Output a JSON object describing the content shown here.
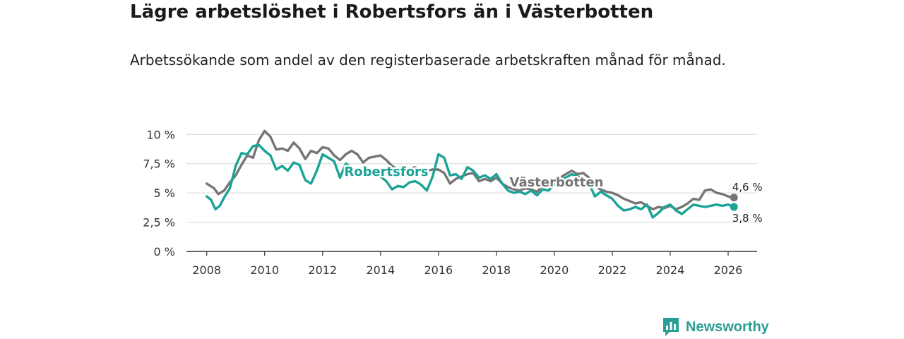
{
  "header": {
    "title": "Lägre arbetslöshet i Robertsfors än i Västerbotten",
    "subtitle": "Arbetssökande som andel av den registerbaserade arbetskraften månad för månad."
  },
  "brand": {
    "name": "Newsworthy",
    "icon": "bar-chart-speech-icon"
  },
  "colors": {
    "robertsfors": "#1aa396",
    "vasterbotten": "#757575",
    "grid": "#d9d9d9",
    "axis": "#333333"
  },
  "chart_data": {
    "type": "line",
    "title": "Lägre arbetslöshet i Robertsfors än i Västerbotten",
    "subtitle": "Arbetssökande som andel av den registerbaserade arbetskraften månad för månad.",
    "xlabel": "",
    "ylabel": "",
    "xlim": [
      2007.3,
      2027.0
    ],
    "ylim": [
      0,
      10.5
    ],
    "grid": true,
    "x_ticks": [
      2008,
      2010,
      2012,
      2014,
      2016,
      2018,
      2020,
      2022,
      2024,
      2026
    ],
    "x_tick_labels": [
      "2008",
      "2010",
      "2012",
      "2014",
      "2016",
      "2018",
      "2020",
      "2022",
      "2024",
      "2026"
    ],
    "y_ticks": [
      0,
      2.5,
      5,
      7.5,
      10
    ],
    "y_tick_labels": [
      "0 %",
      "2,5 %",
      "5 %",
      "7,5 %",
      "10 %"
    ],
    "series": [
      {
        "name": "Västerbotten",
        "label": "Västerbotten",
        "end_label": "4,6 %",
        "points": [
          [
            2008.0,
            5.8
          ],
          [
            2008.25,
            5.4
          ],
          [
            2008.4,
            4.9
          ],
          [
            2008.6,
            5.2
          ],
          [
            2008.8,
            5.9
          ],
          [
            2009.0,
            6.5
          ],
          [
            2009.2,
            7.4
          ],
          [
            2009.4,
            8.2
          ],
          [
            2009.6,
            8.0
          ],
          [
            2009.8,
            9.5
          ],
          [
            2010.0,
            10.3
          ],
          [
            2010.2,
            9.8
          ],
          [
            2010.4,
            8.7
          ],
          [
            2010.6,
            8.8
          ],
          [
            2010.8,
            8.6
          ],
          [
            2011.0,
            9.3
          ],
          [
            2011.2,
            8.8
          ],
          [
            2011.4,
            7.9
          ],
          [
            2011.6,
            8.6
          ],
          [
            2011.8,
            8.4
          ],
          [
            2012.0,
            8.9
          ],
          [
            2012.2,
            8.8
          ],
          [
            2012.4,
            8.2
          ],
          [
            2012.6,
            7.8
          ],
          [
            2012.8,
            8.3
          ],
          [
            2013.0,
            8.6
          ],
          [
            2013.2,
            8.3
          ],
          [
            2013.4,
            7.6
          ],
          [
            2013.6,
            8.0
          ],
          [
            2013.8,
            8.1
          ],
          [
            2014.0,
            8.2
          ],
          [
            2014.2,
            7.8
          ],
          [
            2014.4,
            7.3
          ],
          [
            2014.6,
            7.0
          ],
          [
            2014.8,
            7.3
          ],
          [
            2015.0,
            7.0
          ],
          [
            2015.2,
            7.2
          ],
          [
            2015.4,
            6.8
          ],
          [
            2015.6,
            6.9
          ],
          [
            2015.8,
            7.0
          ],
          [
            2016.0,
            7.0
          ],
          [
            2016.2,
            6.7
          ],
          [
            2016.4,
            5.8
          ],
          [
            2016.6,
            6.2
          ],
          [
            2016.8,
            6.4
          ],
          [
            2017.0,
            6.6
          ],
          [
            2017.2,
            6.7
          ],
          [
            2017.4,
            6.0
          ],
          [
            2017.6,
            6.2
          ],
          [
            2017.8,
            6.0
          ],
          [
            2018.0,
            6.3
          ],
          [
            2018.2,
            5.8
          ],
          [
            2018.4,
            5.5
          ],
          [
            2018.6,
            5.3
          ],
          [
            2018.8,
            5.2
          ],
          [
            2019.0,
            5.4
          ],
          [
            2019.2,
            5.3
          ],
          [
            2019.4,
            5.1
          ],
          [
            2019.6,
            5.6
          ],
          [
            2019.8,
            5.5
          ],
          [
            2020.0,
            5.9
          ],
          [
            2020.2,
            6.3
          ],
          [
            2020.4,
            6.6
          ],
          [
            2020.6,
            6.9
          ],
          [
            2020.8,
            6.6
          ],
          [
            2021.0,
            6.7
          ],
          [
            2021.2,
            6.3
          ],
          [
            2021.4,
            5.6
          ],
          [
            2021.6,
            5.3
          ],
          [
            2021.8,
            5.1
          ],
          [
            2022.0,
            5.0
          ],
          [
            2022.2,
            4.8
          ],
          [
            2022.4,
            4.5
          ],
          [
            2022.6,
            4.3
          ],
          [
            2022.8,
            4.1
          ],
          [
            2023.0,
            4.2
          ],
          [
            2023.2,
            3.9
          ],
          [
            2023.4,
            3.6
          ],
          [
            2023.6,
            3.8
          ],
          [
            2023.8,
            3.7
          ],
          [
            2024.0,
            3.9
          ],
          [
            2024.2,
            3.6
          ],
          [
            2024.4,
            3.8
          ],
          [
            2024.6,
            4.1
          ],
          [
            2024.8,
            4.5
          ],
          [
            2025.0,
            4.4
          ],
          [
            2025.2,
            5.2
          ],
          [
            2025.4,
            5.3
          ],
          [
            2025.6,
            5.0
          ],
          [
            2025.8,
            4.9
          ],
          [
            2026.0,
            4.7
          ],
          [
            2026.2,
            4.6
          ]
        ]
      },
      {
        "name": "Robertsfors",
        "label": "Robertsfors",
        "end_label": "3,8 %",
        "points": [
          [
            2008.0,
            4.7
          ],
          [
            2008.15,
            4.4
          ],
          [
            2008.3,
            3.6
          ],
          [
            2008.45,
            3.9
          ],
          [
            2008.6,
            4.6
          ],
          [
            2008.8,
            5.4
          ],
          [
            2009.0,
            7.3
          ],
          [
            2009.2,
            8.4
          ],
          [
            2009.4,
            8.3
          ],
          [
            2009.6,
            9.0
          ],
          [
            2009.8,
            9.1
          ],
          [
            2010.0,
            8.6
          ],
          [
            2010.2,
            8.2
          ],
          [
            2010.4,
            7.0
          ],
          [
            2010.6,
            7.3
          ],
          [
            2010.8,
            6.9
          ],
          [
            2011.0,
            7.6
          ],
          [
            2011.2,
            7.4
          ],
          [
            2011.4,
            6.1
          ],
          [
            2011.6,
            5.8
          ],
          [
            2011.8,
            6.9
          ],
          [
            2012.0,
            8.3
          ],
          [
            2012.2,
            8.0
          ],
          [
            2012.4,
            7.7
          ],
          [
            2012.6,
            6.3
          ],
          [
            2012.8,
            7.5
          ],
          [
            2013.0,
            7.2
          ],
          [
            2013.2,
            6.6
          ],
          [
            2013.4,
            6.8
          ],
          [
            2013.6,
            7.1
          ],
          [
            2013.8,
            6.7
          ],
          [
            2014.0,
            6.4
          ],
          [
            2014.2,
            6.0
          ],
          [
            2014.4,
            5.3
          ],
          [
            2014.6,
            5.6
          ],
          [
            2014.8,
            5.5
          ],
          [
            2015.0,
            5.9
          ],
          [
            2015.2,
            6.0
          ],
          [
            2015.4,
            5.7
          ],
          [
            2015.6,
            5.2
          ],
          [
            2015.8,
            6.4
          ],
          [
            2016.0,
            8.3
          ],
          [
            2016.2,
            8.0
          ],
          [
            2016.4,
            6.5
          ],
          [
            2016.6,
            6.6
          ],
          [
            2016.8,
            6.2
          ],
          [
            2017.0,
            7.2
          ],
          [
            2017.2,
            6.9
          ],
          [
            2017.4,
            6.3
          ],
          [
            2017.6,
            6.5
          ],
          [
            2017.8,
            6.2
          ],
          [
            2018.0,
            6.6
          ],
          [
            2018.2,
            5.8
          ],
          [
            2018.4,
            5.2
          ],
          [
            2018.6,
            5.0
          ],
          [
            2018.8,
            5.1
          ],
          [
            2019.0,
            4.9
          ],
          [
            2019.2,
            5.2
          ],
          [
            2019.4,
            4.8
          ],
          [
            2019.6,
            5.3
          ],
          [
            2019.8,
            5.2
          ],
          [
            2020.0,
            5.7
          ],
          [
            2020.2,
            6.1
          ],
          [
            2020.4,
            6.3
          ],
          [
            2020.6,
            6.6
          ],
          [
            2020.8,
            6.4
          ],
          [
            2021.0,
            6.3
          ],
          [
            2021.2,
            5.8
          ],
          [
            2021.4,
            4.7
          ],
          [
            2021.6,
            5.1
          ],
          [
            2021.8,
            4.8
          ],
          [
            2022.0,
            4.5
          ],
          [
            2022.2,
            3.9
          ],
          [
            2022.4,
            3.5
          ],
          [
            2022.6,
            3.6
          ],
          [
            2022.8,
            3.8
          ],
          [
            2023.0,
            3.6
          ],
          [
            2023.2,
            4.0
          ],
          [
            2023.4,
            2.9
          ],
          [
            2023.6,
            3.3
          ],
          [
            2023.8,
            3.8
          ],
          [
            2024.0,
            4.0
          ],
          [
            2024.2,
            3.5
          ],
          [
            2024.4,
            3.2
          ],
          [
            2024.6,
            3.6
          ],
          [
            2024.8,
            4.0
          ],
          [
            2025.0,
            3.9
          ],
          [
            2025.2,
            3.8
          ],
          [
            2025.4,
            3.9
          ],
          [
            2025.6,
            4.0
          ],
          [
            2025.8,
            3.9
          ],
          [
            2026.0,
            4.0
          ],
          [
            2026.2,
            3.8
          ]
        ]
      }
    ]
  }
}
